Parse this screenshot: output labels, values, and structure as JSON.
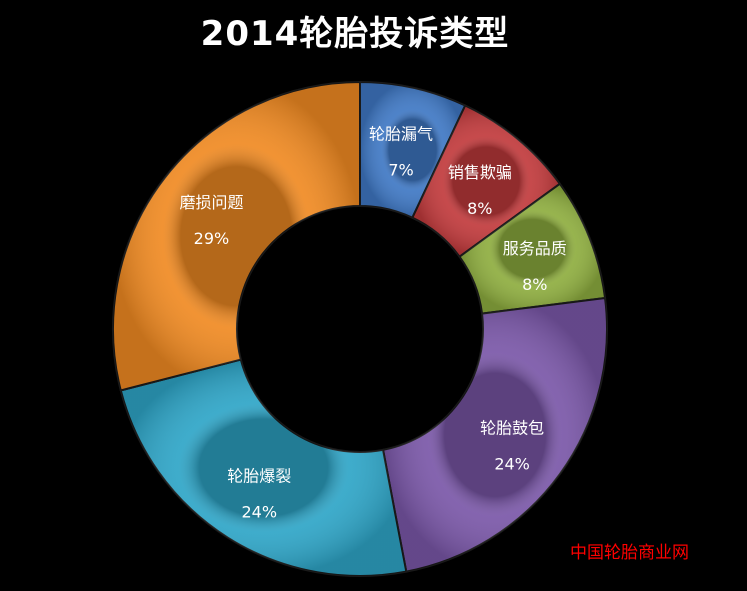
{
  "chart_data": {
    "type": "pie",
    "style": "donut",
    "title": "2014轮胎投诉类型",
    "categories": [
      "轮胎漏气",
      "销售欺骗",
      "服务品质",
      "轮胎鼓包",
      "轮胎爆裂",
      "磨损问题"
    ],
    "values": [
      7,
      8,
      8,
      24,
      24,
      29
    ],
    "value_labels": [
      "7%",
      "8%",
      "8%",
      "24%",
      "24%",
      "29%"
    ],
    "unit": "%",
    "colors": [
      "#3f78c4",
      "#c13a3c",
      "#8ead3f",
      "#7a57a8",
      "#2ea5c7",
      "#f08a22"
    ],
    "legend": "none"
  },
  "watermark": "中国轮胎商业网"
}
